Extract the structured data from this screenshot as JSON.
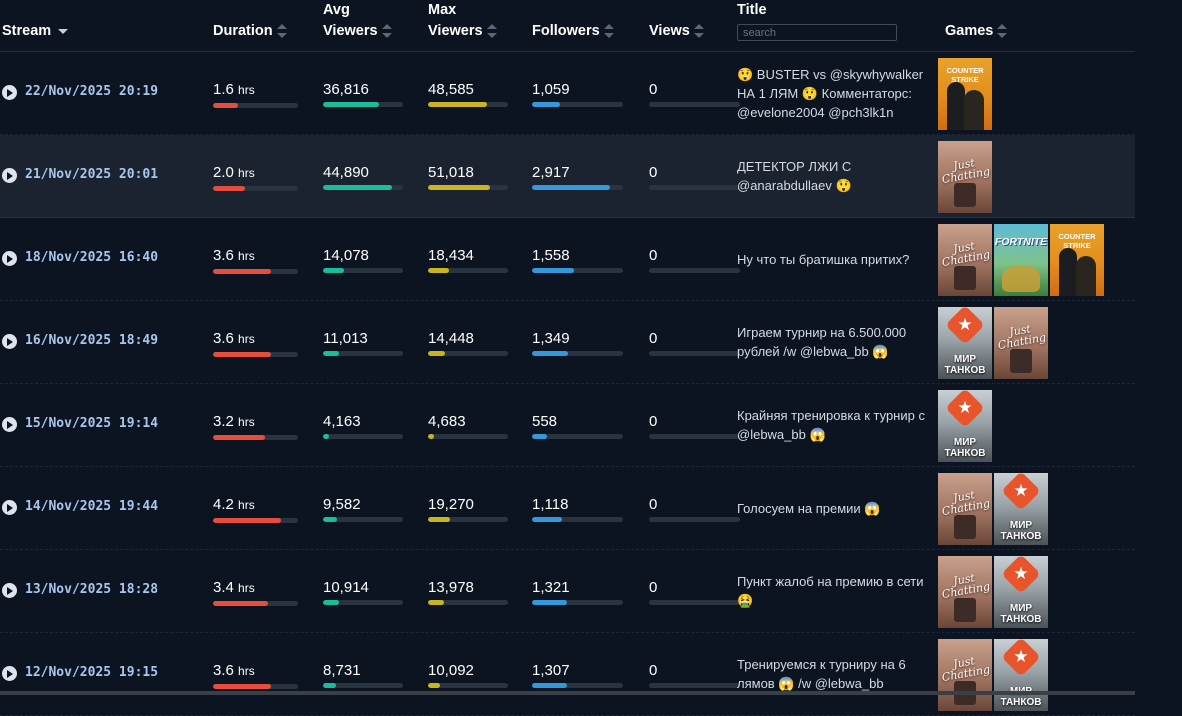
{
  "headers": {
    "stream": "Stream",
    "duration": "Duration",
    "avg_viewers": [
      "Avg",
      "Viewers"
    ],
    "max_viewers": [
      "Max",
      "Viewers"
    ],
    "followers": "Followers",
    "views": "Views",
    "title": "Title",
    "games": "Games"
  },
  "search": {
    "placeholder": "search"
  },
  "colors": {
    "duration_bar": "#e74c3c",
    "avg_viewers_bar": "#1abc9c",
    "max_viewers_bar": "#c9b520",
    "followers_bar": "#3498db",
    "views_bar": "#2a3441"
  },
  "game_labels": {
    "counter-strike": "COUNTER STRIKE",
    "just-chatting": "Just Chatting",
    "fortnite": "FORTNITE",
    "world-of-tanks": "МИР ТАНКОВ"
  },
  "streams": [
    {
      "date": "22/Nov/2025 20:19",
      "duration": "1.6",
      "duration_unit": "hrs",
      "duration_level": 0.29,
      "avg_viewers": "36,816",
      "avg_level": 0.7,
      "max_viewers": "48,585",
      "max_level": 0.74,
      "followers": "1,059",
      "followers_level": 0.31,
      "views": "0",
      "title": "😲 BUSTER vs @skywhywalker НА 1 ЛЯМ 😲 Комментаторс: @evelone2004 @pch3lk1n",
      "games": [
        "counter-strike"
      ],
      "highlighted": false
    },
    {
      "date": "21/Nov/2025 20:01",
      "duration": "2.0",
      "duration_unit": "hrs",
      "duration_level": 0.38,
      "avg_viewers": "44,890",
      "avg_level": 0.86,
      "max_viewers": "51,018",
      "max_level": 0.77,
      "followers": "2,917",
      "followers_level": 0.86,
      "views": "0",
      "title": "ДЕТЕКТОР ЛЖИ С @anarabdullaev 😲",
      "games": [
        "just-chatting"
      ],
      "highlighted": true
    },
    {
      "date": "18/Nov/2025 16:40",
      "duration": "3.6",
      "duration_unit": "hrs",
      "duration_level": 0.68,
      "avg_viewers": "14,078",
      "avg_level": 0.26,
      "max_viewers": "18,434",
      "max_level": 0.26,
      "followers": "1,558",
      "followers_level": 0.46,
      "views": "0",
      "title": "Ну что ты братишка притих?",
      "games": [
        "just-chatting",
        "fortnite",
        "counter-strike"
      ],
      "highlighted": false
    },
    {
      "date": "16/Nov/2025 18:49",
      "duration": "3.6",
      "duration_unit": "hrs",
      "duration_level": 0.68,
      "avg_viewers": "11,013",
      "avg_level": 0.2,
      "max_viewers": "14,448",
      "max_level": 0.21,
      "followers": "1,349",
      "followers_level": 0.4,
      "views": "0",
      "title": "Играем турнир на 6.500.000 рублей /w @lebwa_bb 😱",
      "games": [
        "world-of-tanks",
        "just-chatting"
      ],
      "highlighted": false
    },
    {
      "date": "15/Nov/2025 19:14",
      "duration": "3.2",
      "duration_unit": "hrs",
      "duration_level": 0.61,
      "avg_viewers": "4,163",
      "avg_level": 0.08,
      "max_viewers": "4,683",
      "max_level": 0.07,
      "followers": "558",
      "followers_level": 0.16,
      "views": "0",
      "title": "Крайняя тренировка к турнир с @lebwa_bb 😱",
      "games": [
        "world-of-tanks"
      ],
      "highlighted": false
    },
    {
      "date": "14/Nov/2025 19:44",
      "duration": "4.2",
      "duration_unit": "hrs",
      "duration_level": 0.8,
      "avg_viewers": "9,582",
      "avg_level": 0.18,
      "max_viewers": "19,270",
      "max_level": 0.28,
      "followers": "1,118",
      "followers_level": 0.33,
      "views": "0",
      "title": "Голосуем на премии 😱",
      "games": [
        "just-chatting",
        "world-of-tanks"
      ],
      "highlighted": false
    },
    {
      "date": "13/Nov/2025 18:28",
      "duration": "3.4",
      "duration_unit": "hrs",
      "duration_level": 0.65,
      "avg_viewers": "10,914",
      "avg_level": 0.2,
      "max_viewers": "13,978",
      "max_level": 0.2,
      "followers": "1,321",
      "followers_level": 0.39,
      "views": "0",
      "title": "Пункт жалоб на премию в сети 🤮",
      "games": [
        "just-chatting",
        "world-of-tanks"
      ],
      "highlighted": false
    },
    {
      "date": "12/Nov/2025 19:15",
      "duration": "3.6",
      "duration_unit": "hrs",
      "duration_level": 0.68,
      "avg_viewers": "8,731",
      "avg_level": 0.16,
      "max_viewers": "10,092",
      "max_level": 0.15,
      "followers": "1,307",
      "followers_level": 0.38,
      "views": "0",
      "title": "Тренируемся к турниру на 6 лямов 😱 /w @lebwa_bb",
      "games": [
        "just-chatting",
        "world-of-tanks"
      ],
      "highlighted": false
    }
  ]
}
